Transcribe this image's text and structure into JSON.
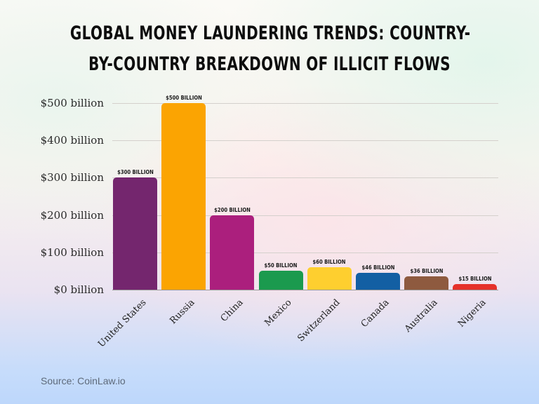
{
  "title": {
    "line1": "Global Money Laundering Trends: Country-",
    "line2": "by-Country Breakdown of Illicit Flows"
  },
  "source": "Source: CoinLaw.io",
  "y_axis": {
    "ticks": [
      "$0 billion",
      "$100 billion",
      "$200 billion",
      "$300 billion",
      "$400 billion",
      "$500 billion"
    ]
  },
  "bars": [
    {
      "country": "United States",
      "value": 300,
      "label": "$300 billion",
      "color": "#74266e"
    },
    {
      "country": "Russia",
      "value": 500,
      "label": "$500 billion",
      "color": "#fba402"
    },
    {
      "country": "China",
      "value": 200,
      "label": "$200 billion",
      "color": "#ab1f7d"
    },
    {
      "country": "Mexico",
      "value": 50,
      "label": "$50 billion",
      "color": "#1b9a4e"
    },
    {
      "country": "Switzerland",
      "value": 60,
      "label": "$60 billion",
      "color": "#fecf2f"
    },
    {
      "country": "Canada",
      "value": 46,
      "label": "$46 billion",
      "color": "#135fa3"
    },
    {
      "country": "Australia",
      "value": 36,
      "label": "$36 billion",
      "color": "#8e5a3f"
    },
    {
      "country": "Nigeria",
      "value": 15,
      "label": "$15 billion",
      "color": "#e5312a"
    }
  ],
  "chart_data": {
    "type": "bar",
    "title": "Global Money Laundering Trends: Country-by-Country Breakdown of Illicit Flows",
    "categories": [
      "United States",
      "Russia",
      "China",
      "Mexico",
      "Switzerland",
      "Canada",
      "Australia",
      "Nigeria"
    ],
    "values": [
      300,
      500,
      200,
      50,
      60,
      46,
      36,
      15
    ],
    "data_labels": [
      "$300 billion",
      "$500 billion",
      "$200 billion",
      "$50 billion",
      "$60 billion",
      "$46 billion",
      "$36 billion",
      "$15 billion"
    ],
    "colors": [
      "#74266e",
      "#fba402",
      "#ab1f7d",
      "#1b9a4e",
      "#fecf2f",
      "#135fa3",
      "#8e5a3f",
      "#e5312a"
    ],
    "xlabel": "",
    "ylabel": "",
    "yticks": [
      "$0 billion",
      "$100 billion",
      "$200 billion",
      "$300 billion",
      "$400 billion",
      "$500 billion"
    ],
    "ylim": [
      0,
      500
    ],
    "grid": true,
    "legend": "none",
    "source": "Source: CoinLaw.io"
  }
}
